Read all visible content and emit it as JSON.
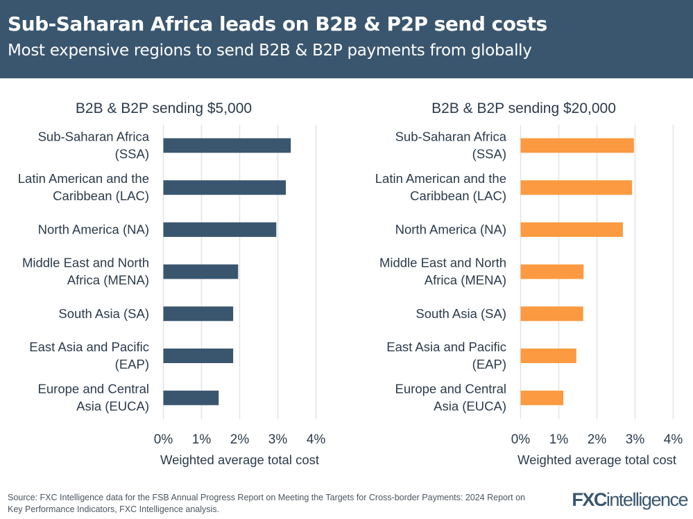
{
  "header": {
    "title": "Sub-Saharan Africa leads on B2B & P2P send costs",
    "subtitle": "Most expensive regions to send B2B & B2P payments from globally"
  },
  "footer": {
    "source": "Source: FXC Intelligence data for the FSB Annual Progress Report on Meeting the Targets for Cross-border Payments: 2024 Report on Key Performance Indicators, FXC Intelligence analysis.",
    "logo": "FXCintelligence"
  },
  "chart_data": [
    {
      "type": "bar",
      "orientation": "horizontal",
      "title": "B2B & B2P sending $5,000",
      "xlabel": "Weighted average total cost",
      "xlim": [
        0,
        4
      ],
      "xticks": [
        "0%",
        "1%",
        "2%",
        "3%",
        "4%"
      ],
      "grid": true,
      "color": "#3a566f",
      "categories": [
        [
          "Sub-Saharan Africa",
          "(SSA)"
        ],
        [
          "Latin American and the",
          "Caribbean (LAC)"
        ],
        [
          "North America (NA)"
        ],
        [
          "Middle East and North",
          "Africa (MENA)"
        ],
        [
          "South Asia (SA)"
        ],
        [
          "East Asia and Pacific",
          "(EAP)"
        ],
        [
          "Europe and Central",
          "Asia (EUCA)"
        ]
      ],
      "values": [
        3.34,
        3.21,
        2.96,
        1.96,
        1.83,
        1.83,
        1.45
      ]
    },
    {
      "type": "bar",
      "orientation": "horizontal",
      "title": "B2B & B2P sending $20,000",
      "xlabel": "Weighted average total cost",
      "xlim": [
        0,
        4
      ],
      "xticks": [
        "0%",
        "1%",
        "2%",
        "3%",
        "4%"
      ],
      "grid": true,
      "color": "#fb9a40",
      "categories": [
        [
          "Sub-Saharan Africa",
          "(SSA)"
        ],
        [
          "Latin American and the",
          "Caribbean (LAC)"
        ],
        [
          "North America (NA)"
        ],
        [
          "Middle East and North",
          "Africa (MENA)"
        ],
        [
          "South Asia (SA)"
        ],
        [
          "East Asia and Pacific",
          "(EAP)"
        ],
        [
          "Europe and Central",
          "Asia (EUCA)"
        ]
      ],
      "values": [
        2.97,
        2.92,
        2.68,
        1.65,
        1.64,
        1.46,
        1.12
      ]
    }
  ]
}
